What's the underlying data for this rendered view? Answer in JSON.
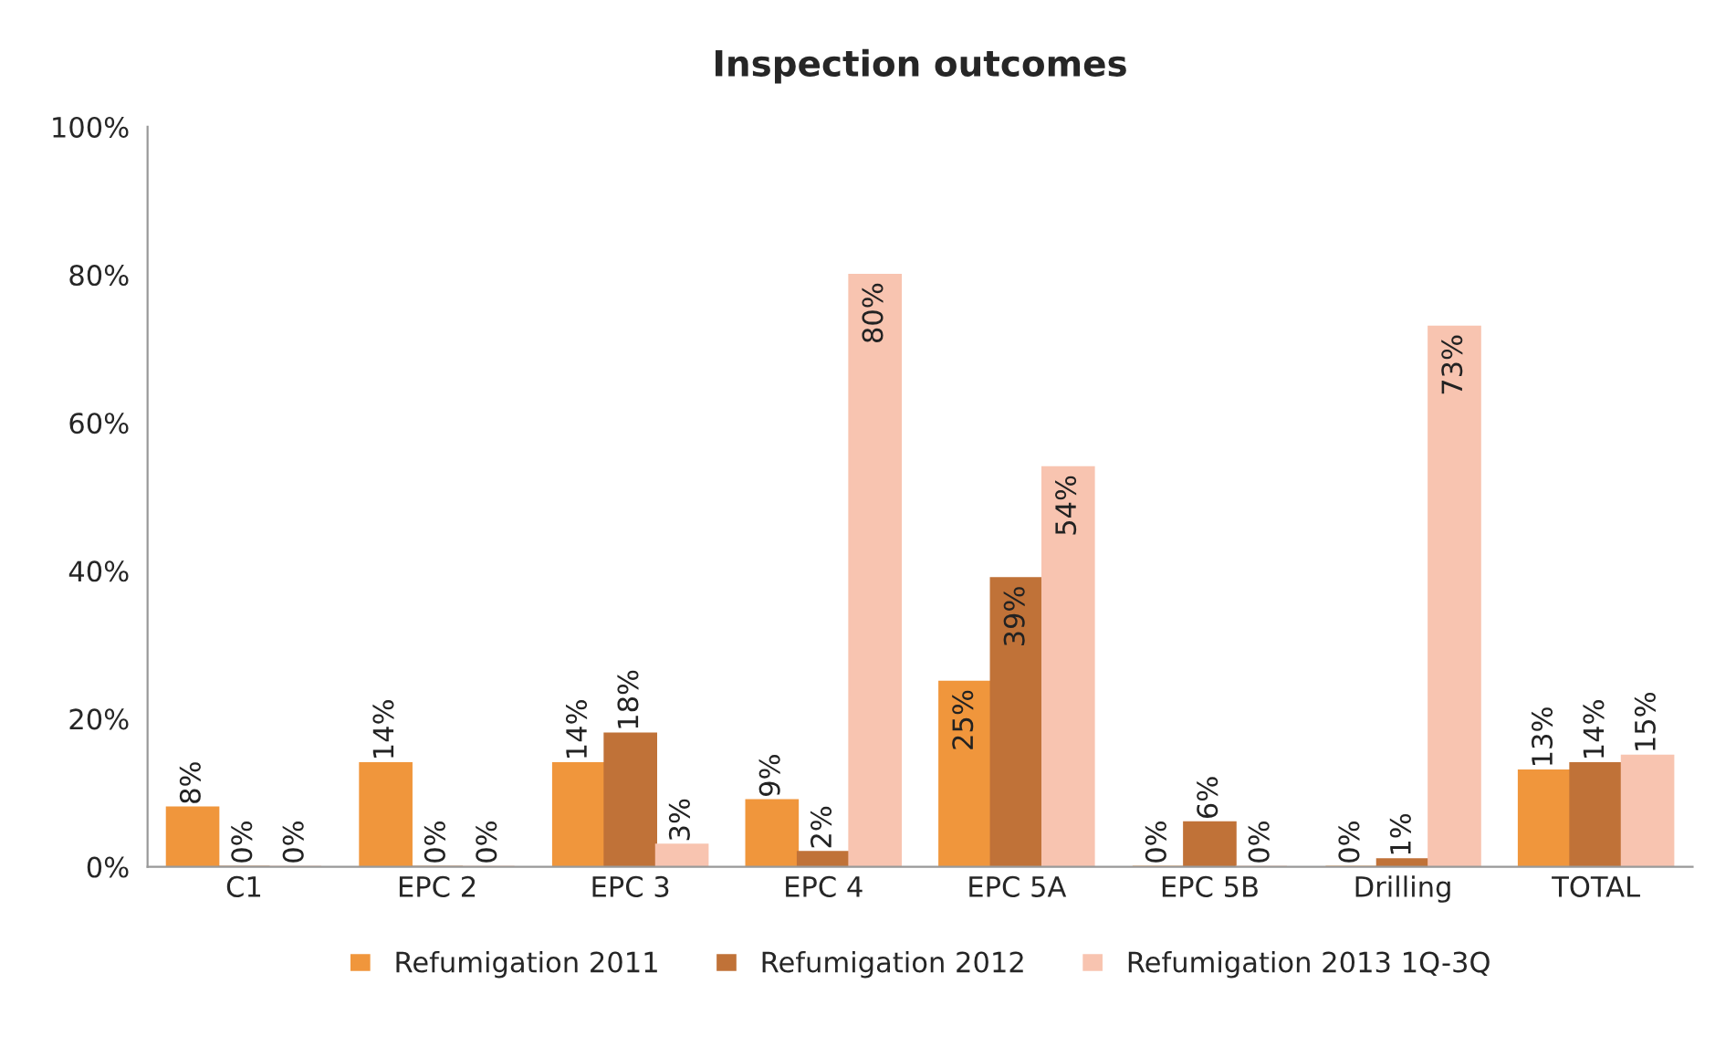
{
  "chart_data": {
    "type": "bar",
    "title": "Inspection outcomes",
    "categories": [
      "C1",
      "EPC 2",
      "EPC 3",
      "EPC 4",
      "EPC 5A",
      "EPC 5B",
      "Drilling",
      "TOTAL"
    ],
    "series": [
      {
        "name": "Refumigation 2011",
        "color": "#f0963c",
        "values": [
          8,
          14,
          14,
          9,
          25,
          0,
          0,
          13
        ],
        "value_labels": [
          "8%",
          "14%",
          "14%",
          "9%",
          "25%",
          "0%",
          "0%",
          "13%"
        ]
      },
      {
        "name": "Refumigation 2012",
        "color": "#c07238",
        "values": [
          0,
          0,
          18,
          2,
          39,
          6,
          1,
          14
        ],
        "value_labels": [
          "0%",
          "0%",
          "18%",
          "2%",
          "39%",
          "6%",
          "1%",
          "14%"
        ]
      },
      {
        "name": "Refumigation 2013 1Q-3Q",
        "color": "#f8c4b0",
        "values": [
          0,
          0,
          3,
          80,
          54,
          0,
          73,
          15
        ],
        "value_labels": [
          "0%",
          "0%",
          "3%",
          "80%",
          "54%",
          "0%",
          "73%",
          "15%"
        ]
      }
    ],
    "ylim": [
      0,
      100
    ],
    "yticks": [
      {
        "value": 0,
        "label": "0%"
      },
      {
        "value": 20,
        "label": "20%"
      },
      {
        "value": 40,
        "label": "40%"
      },
      {
        "value": 60,
        "label": "60%"
      },
      {
        "value": 80,
        "label": "80%"
      },
      {
        "value": 100,
        "label": "100%"
      }
    ],
    "legend": "bottom",
    "grid": false
  }
}
